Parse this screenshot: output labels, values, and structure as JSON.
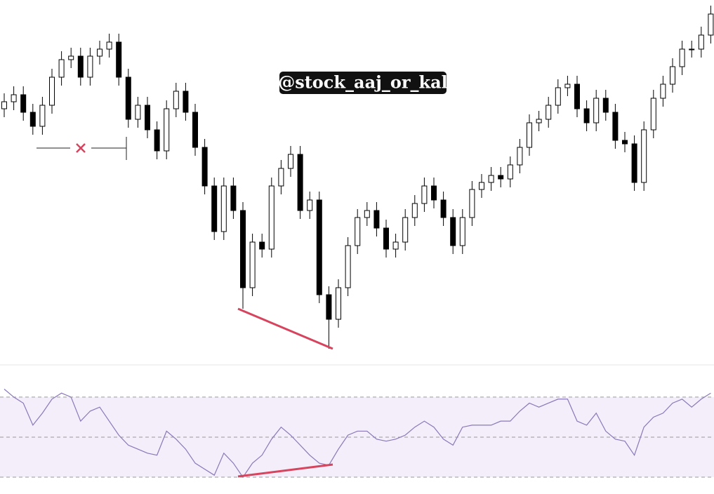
{
  "watermark": "@stock_aaj_or_kal",
  "chart_data": [
    {
      "type": "candlestick",
      "up_color": "#ffffff",
      "down_color": "#000000",
      "edge_color": "#000000",
      "ylim": [
        0,
        520
      ],
      "open": [
        365,
        375,
        385,
        360,
        340,
        370,
        410,
        435,
        440,
        410,
        440,
        450,
        460,
        410,
        350,
        370,
        335,
        305,
        365,
        390,
        360,
        310,
        255,
        190,
        255,
        220,
        110,
        175,
        165,
        255,
        280,
        300,
        220,
        235,
        100,
        65,
        110,
        170,
        210,
        220,
        195,
        165,
        175,
        210,
        230,
        255,
        235,
        210,
        170,
        210,
        250,
        260,
        270,
        265,
        285,
        310,
        345,
        350,
        370,
        395,
        400,
        365,
        345,
        380,
        360,
        320,
        315,
        260,
        335,
        380,
        400,
        425,
        450,
        450,
        470
      ],
      "high": [
        387,
        397,
        397,
        372,
        382,
        422,
        447,
        452,
        452,
        452,
        462,
        472,
        472,
        422,
        382,
        382,
        347,
        377,
        402,
        402,
        372,
        322,
        267,
        267,
        267,
        232,
        187,
        187,
        267,
        292,
        312,
        312,
        247,
        247,
        112,
        122,
        182,
        222,
        232,
        232,
        207,
        187,
        222,
        242,
        267,
        267,
        247,
        222,
        222,
        262,
        272,
        282,
        282,
        297,
        322,
        357,
        362,
        382,
        407,
        412,
        412,
        377,
        392,
        392,
        372,
        332,
        327,
        347,
        392,
        412,
        437,
        462,
        462,
        482,
        512
      ],
      "low": [
        353,
        363,
        348,
        328,
        328,
        358,
        398,
        423,
        398,
        398,
        428,
        438,
        398,
        338,
        338,
        323,
        293,
        293,
        353,
        348,
        298,
        243,
        178,
        178,
        208,
        80,
        98,
        153,
        153,
        243,
        268,
        208,
        208,
        88,
        23,
        53,
        98,
        158,
        198,
        183,
        153,
        153,
        163,
        198,
        218,
        223,
        198,
        158,
        158,
        198,
        238,
        248,
        253,
        253,
        273,
        298,
        333,
        338,
        358,
        383,
        353,
        333,
        333,
        348,
        308,
        303,
        248,
        248,
        323,
        368,
        388,
        413,
        438,
        438,
        458
      ],
      "close": [
        375,
        385,
        360,
        340,
        370,
        410,
        435,
        440,
        410,
        440,
        450,
        460,
        410,
        350,
        370,
        335,
        305,
        365,
        390,
        360,
        310,
        255,
        190,
        255,
        220,
        110,
        175,
        165,
        255,
        280,
        300,
        220,
        235,
        100,
        65,
        110,
        170,
        210,
        220,
        195,
        165,
        175,
        210,
        230,
        255,
        235,
        210,
        170,
        210,
        250,
        260,
        270,
        265,
        285,
        310,
        345,
        350,
        370,
        395,
        400,
        365,
        345,
        380,
        360,
        320,
        315,
        260,
        335,
        380,
        400,
        425,
        450,
        450,
        470,
        500
      ]
    },
    {
      "type": "line",
      "color": "#8a78b8",
      "band_color": "#f3eefa",
      "level_color": "#9a9a9a",
      "ylim": [
        21.6,
        86.1
      ],
      "levels": [
        30,
        50,
        70
      ],
      "values": [
        74,
        70,
        67,
        56,
        62,
        69,
        72,
        70,
        58,
        63,
        65,
        58,
        51,
        46,
        44,
        42,
        41,
        53,
        49,
        44,
        37,
        34,
        31,
        42,
        37,
        30,
        37,
        41,
        49,
        55,
        51,
        46,
        41,
        37,
        36,
        44,
        51,
        53,
        53,
        49,
        48,
        49,
        51,
        55,
        58,
        55,
        49,
        46,
        55,
        56,
        56,
        56,
        58,
        58,
        63,
        67,
        65,
        67,
        69,
        69,
        58,
        56,
        62,
        53,
        49,
        48,
        41,
        55,
        60,
        62,
        67,
        69,
        65,
        69,
        72
      ]
    }
  ]
}
